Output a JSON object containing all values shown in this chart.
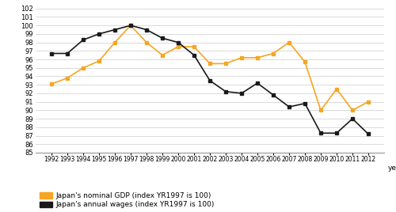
{
  "years": [
    1992,
    1993,
    1994,
    1995,
    1996,
    1997,
    1998,
    1999,
    2000,
    2001,
    2002,
    2003,
    2004,
    2005,
    2006,
    2007,
    2008,
    2009,
    2010,
    2011,
    2012
  ],
  "gdp": [
    93.1,
    93.8,
    95.0,
    95.8,
    98.0,
    100.0,
    98.0,
    96.5,
    97.5,
    97.5,
    95.5,
    95.5,
    96.2,
    96.2,
    96.7,
    98.0,
    95.7,
    90.0,
    92.5,
    90.0,
    91.0
  ],
  "wages": [
    96.7,
    96.7,
    98.3,
    99.0,
    99.5,
    100.0,
    99.5,
    98.5,
    98.0,
    96.5,
    93.5,
    92.2,
    92.0,
    93.2,
    91.8,
    90.4,
    90.8,
    87.3,
    87.3,
    89.0,
    87.2
  ],
  "gdp_color": "#f5a623",
  "wages_color": "#1a1a1a",
  "ylim": [
    85,
    102
  ],
  "yticks": [
    85,
    86,
    87,
    88,
    89,
    90,
    91,
    92,
    93,
    94,
    95,
    96,
    97,
    98,
    99,
    100,
    101,
    102
  ],
  "xlabel": "year",
  "legend_gdp": "Japan's nominal GDP (index YR1997 is 100)",
  "legend_wages": "Japan's annual wages (index YR1997 is 100)",
  "background_color": "#ffffff",
  "grid_color": "#cccccc"
}
